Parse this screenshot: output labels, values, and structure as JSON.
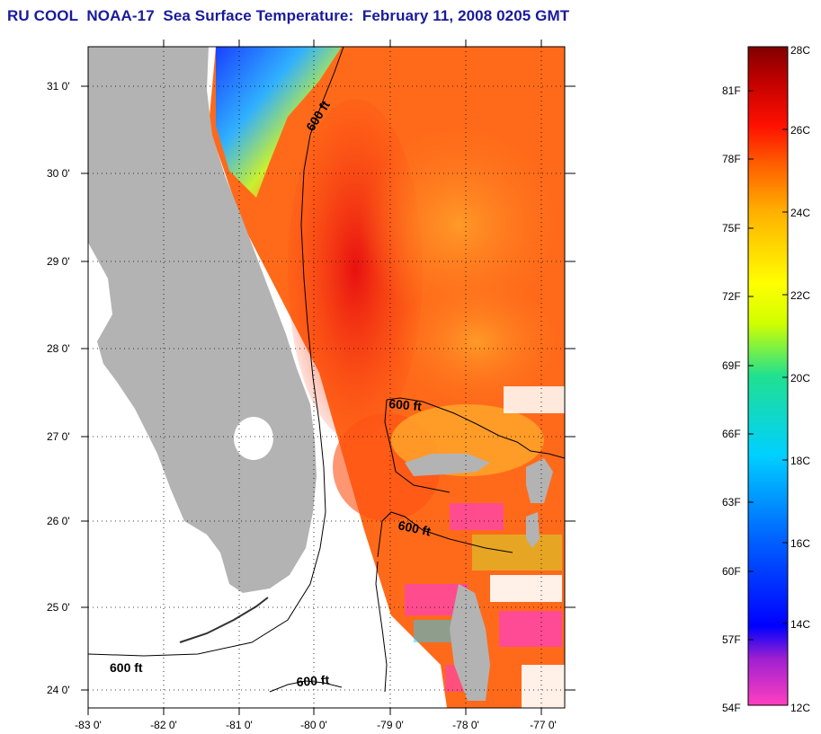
{
  "title": "RU COOL  NOAA-17  Sea Surface Temperature:  February 11, 2008 0205 GMT",
  "map": {
    "lon_labels": [
      "-83 0'",
      "-82 0'",
      "-81 0'",
      "-80 0'",
      "-79 0'",
      "-78 0'",
      "-77 0'"
    ],
    "lat_labels": [
      "31 0'",
      "30 0'",
      "29 0'",
      "28 0'",
      "27 0'",
      "26 0'",
      "25 0'",
      "24 0'"
    ],
    "lon_range": [
      -83,
      -77
    ],
    "lat_range": [
      23.9,
      31.4
    ],
    "isobath_label": "600 ft",
    "land_color": "#b3b3b3",
    "no_data_color": "#ffffff"
  },
  "colorbar": {
    "fahrenheit_labels": [
      "81F",
      "78F",
      "75F",
      "72F",
      "69F",
      "66F",
      "63F",
      "60F",
      "57F",
      "54F"
    ],
    "celsius_labels": [
      "28C",
      "26C",
      "24C",
      "22C",
      "20C",
      "18C",
      "16C",
      "14C",
      "12C"
    ],
    "range_c": [
      12,
      28
    ],
    "colors_low_to_high": [
      "#ff40c0",
      "#a020d0",
      "#0000ff",
      "#0060ff",
      "#00d0ff",
      "#20e090",
      "#d0ff00",
      "#ffff00",
      "#ffb000",
      "#ff6000",
      "#ff1000",
      "#c00000",
      "#800000"
    ]
  }
}
